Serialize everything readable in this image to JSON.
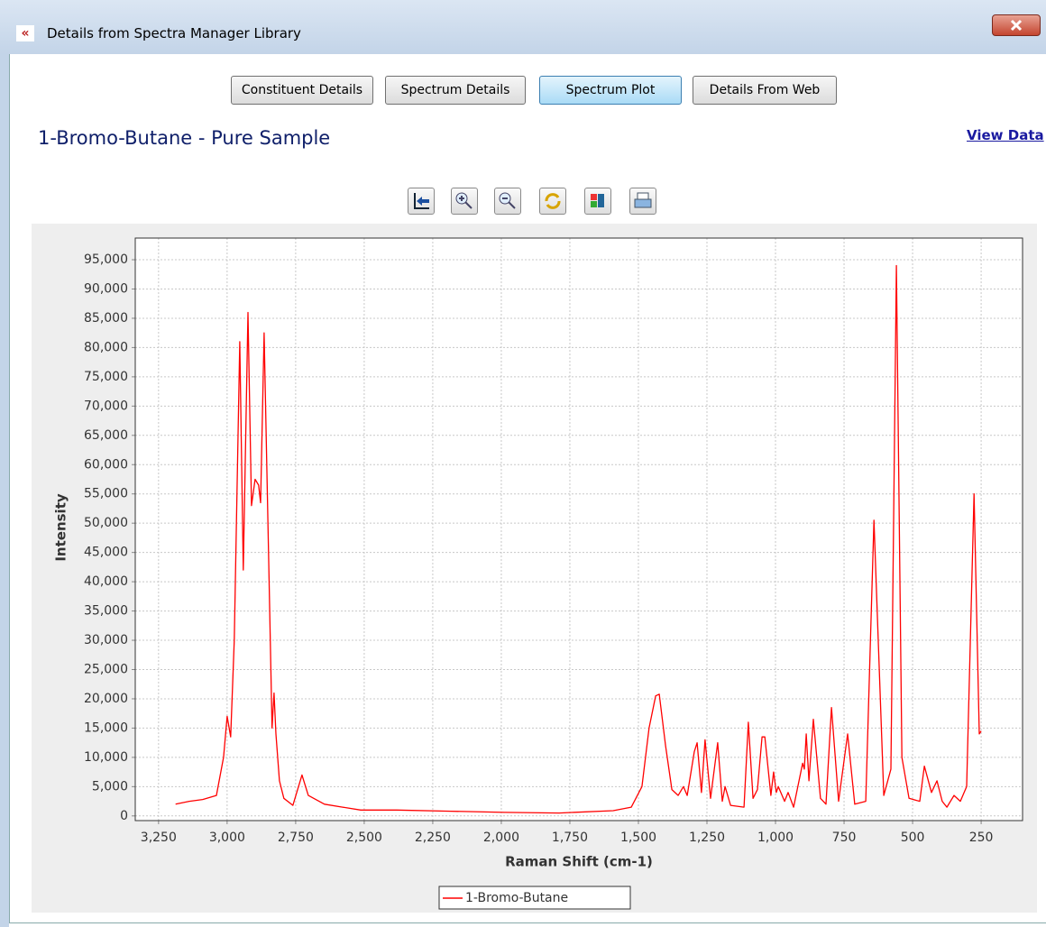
{
  "window": {
    "title": "Details from Spectra Manager Library"
  },
  "tabs": [
    {
      "label": "Constituent Details",
      "selected": false
    },
    {
      "label": "Spectrum Details",
      "selected": false
    },
    {
      "label": "Spectrum Plot",
      "selected": true
    },
    {
      "label": "Details From Web",
      "selected": false
    }
  ],
  "heading": "1-Bromo-Butane - Pure Sample",
  "link": "View Data",
  "chart_data": {
    "type": "line",
    "xlabel": "Raman Shift (cm-1)",
    "ylabel": "Intensity",
    "xlim": [
      3335,
      99
    ],
    "ylim": [
      -800,
      98700
    ],
    "xticks": [
      {
        "value": 3250,
        "label": "3,250"
      },
      {
        "value": 3000,
        "label": "3,000"
      },
      {
        "value": 2750,
        "label": "2,750"
      },
      {
        "value": 2500,
        "label": "2,500"
      },
      {
        "value": 2250,
        "label": "2,250"
      },
      {
        "value": 2000,
        "label": "2,000"
      },
      {
        "value": 1750,
        "label": "1,750"
      },
      {
        "value": 1500,
        "label": "1,500"
      },
      {
        "value": 1250,
        "label": "1,250"
      },
      {
        "value": 1000,
        "label": "1,000"
      },
      750,
      500,
      250
    ],
    "yticks": [
      0,
      {
        "value": 5000,
        "label": "5,000"
      },
      {
        "value": 10000,
        "label": "10,000"
      },
      {
        "value": 15000,
        "label": "15,000"
      },
      {
        "value": 20000,
        "label": "20,000"
      },
      {
        "value": 25000,
        "label": "25,000"
      },
      {
        "value": 30000,
        "label": "30,000"
      },
      {
        "value": 35000,
        "label": "35,000"
      },
      {
        "value": 40000,
        "label": "40,000"
      },
      {
        "value": 45000,
        "label": "45,000"
      },
      {
        "value": 50000,
        "label": "50,000"
      },
      {
        "value": 55000,
        "label": "55,000"
      },
      {
        "value": 60000,
        "label": "60,000"
      },
      {
        "value": 65000,
        "label": "65,000"
      },
      {
        "value": 70000,
        "label": "70,000"
      },
      {
        "value": 75000,
        "label": "75,000"
      },
      {
        "value": 80000,
        "label": "80,000"
      },
      {
        "value": 85000,
        "label": "85,000"
      },
      {
        "value": 90000,
        "label": "90,000"
      },
      {
        "value": 95000,
        "label": "95,000"
      }
    ],
    "grid": true,
    "legend": "bottom",
    "x": [
      3188,
      3138,
      3089,
      3039,
      3013,
      3000,
      2987,
      2974,
      2954,
      2941,
      2924,
      2911,
      2898,
      2885,
      2878,
      2865,
      2849,
      2836,
      2829,
      2822,
      2809,
      2793,
      2760,
      2727,
      2704,
      2645,
      2579,
      2513,
      2382,
      2184,
      1987,
      1789,
      1592,
      1526,
      1487,
      1461,
      1437,
      1424,
      1401,
      1378,
      1355,
      1336,
      1322,
      1303,
      1296,
      1286,
      1270,
      1257,
      1237,
      1211,
      1194,
      1184,
      1164,
      1115,
      1099,
      1082,
      1066,
      1049,
      1039,
      1017,
      1007,
      997,
      990,
      967,
      954,
      934,
      901,
      895,
      888,
      878,
      862,
      836,
      816,
      796,
      770,
      737,
      711,
      671,
      641,
      605,
      579,
      559,
      539,
      513,
      474,
      457,
      431,
      411,
      392,
      375,
      349,
      326,
      303,
      276,
      257,
      250
    ],
    "series": [
      {
        "name": "1-Bromo-Butane",
        "color": "#ff0000",
        "values": [
          2000,
          2500,
          2800,
          3500,
          10000,
          17000,
          13500,
          30000,
          81000,
          42000,
          86000,
          53000,
          57500,
          56500,
          53500,
          82500,
          45000,
          15000,
          21000,
          14000,
          6000,
          3000,
          1800,
          7000,
          3500,
          2000,
          1500,
          1000,
          1000,
          800,
          600,
          500,
          900,
          1500,
          5000,
          15000,
          20500,
          20800,
          12000,
          4500,
          3500,
          5000,
          3500,
          9000,
          11000,
          12500,
          4000,
          13000,
          3000,
          12500,
          2500,
          5000,
          1800,
          1500,
          16000,
          3000,
          4500,
          13500,
          13500,
          3500,
          7500,
          4000,
          5000,
          2500,
          4000,
          1500,
          9000,
          8000,
          14000,
          6000,
          16500,
          3000,
          2000,
          18500,
          2500,
          14000,
          2000,
          2500,
          50500,
          3500,
          8000,
          94000,
          10000,
          3000,
          2500,
          8500,
          4000,
          6000,
          2500,
          1500,
          3500,
          2500,
          5000,
          55000,
          14000,
          14500
        ]
      }
    ]
  }
}
